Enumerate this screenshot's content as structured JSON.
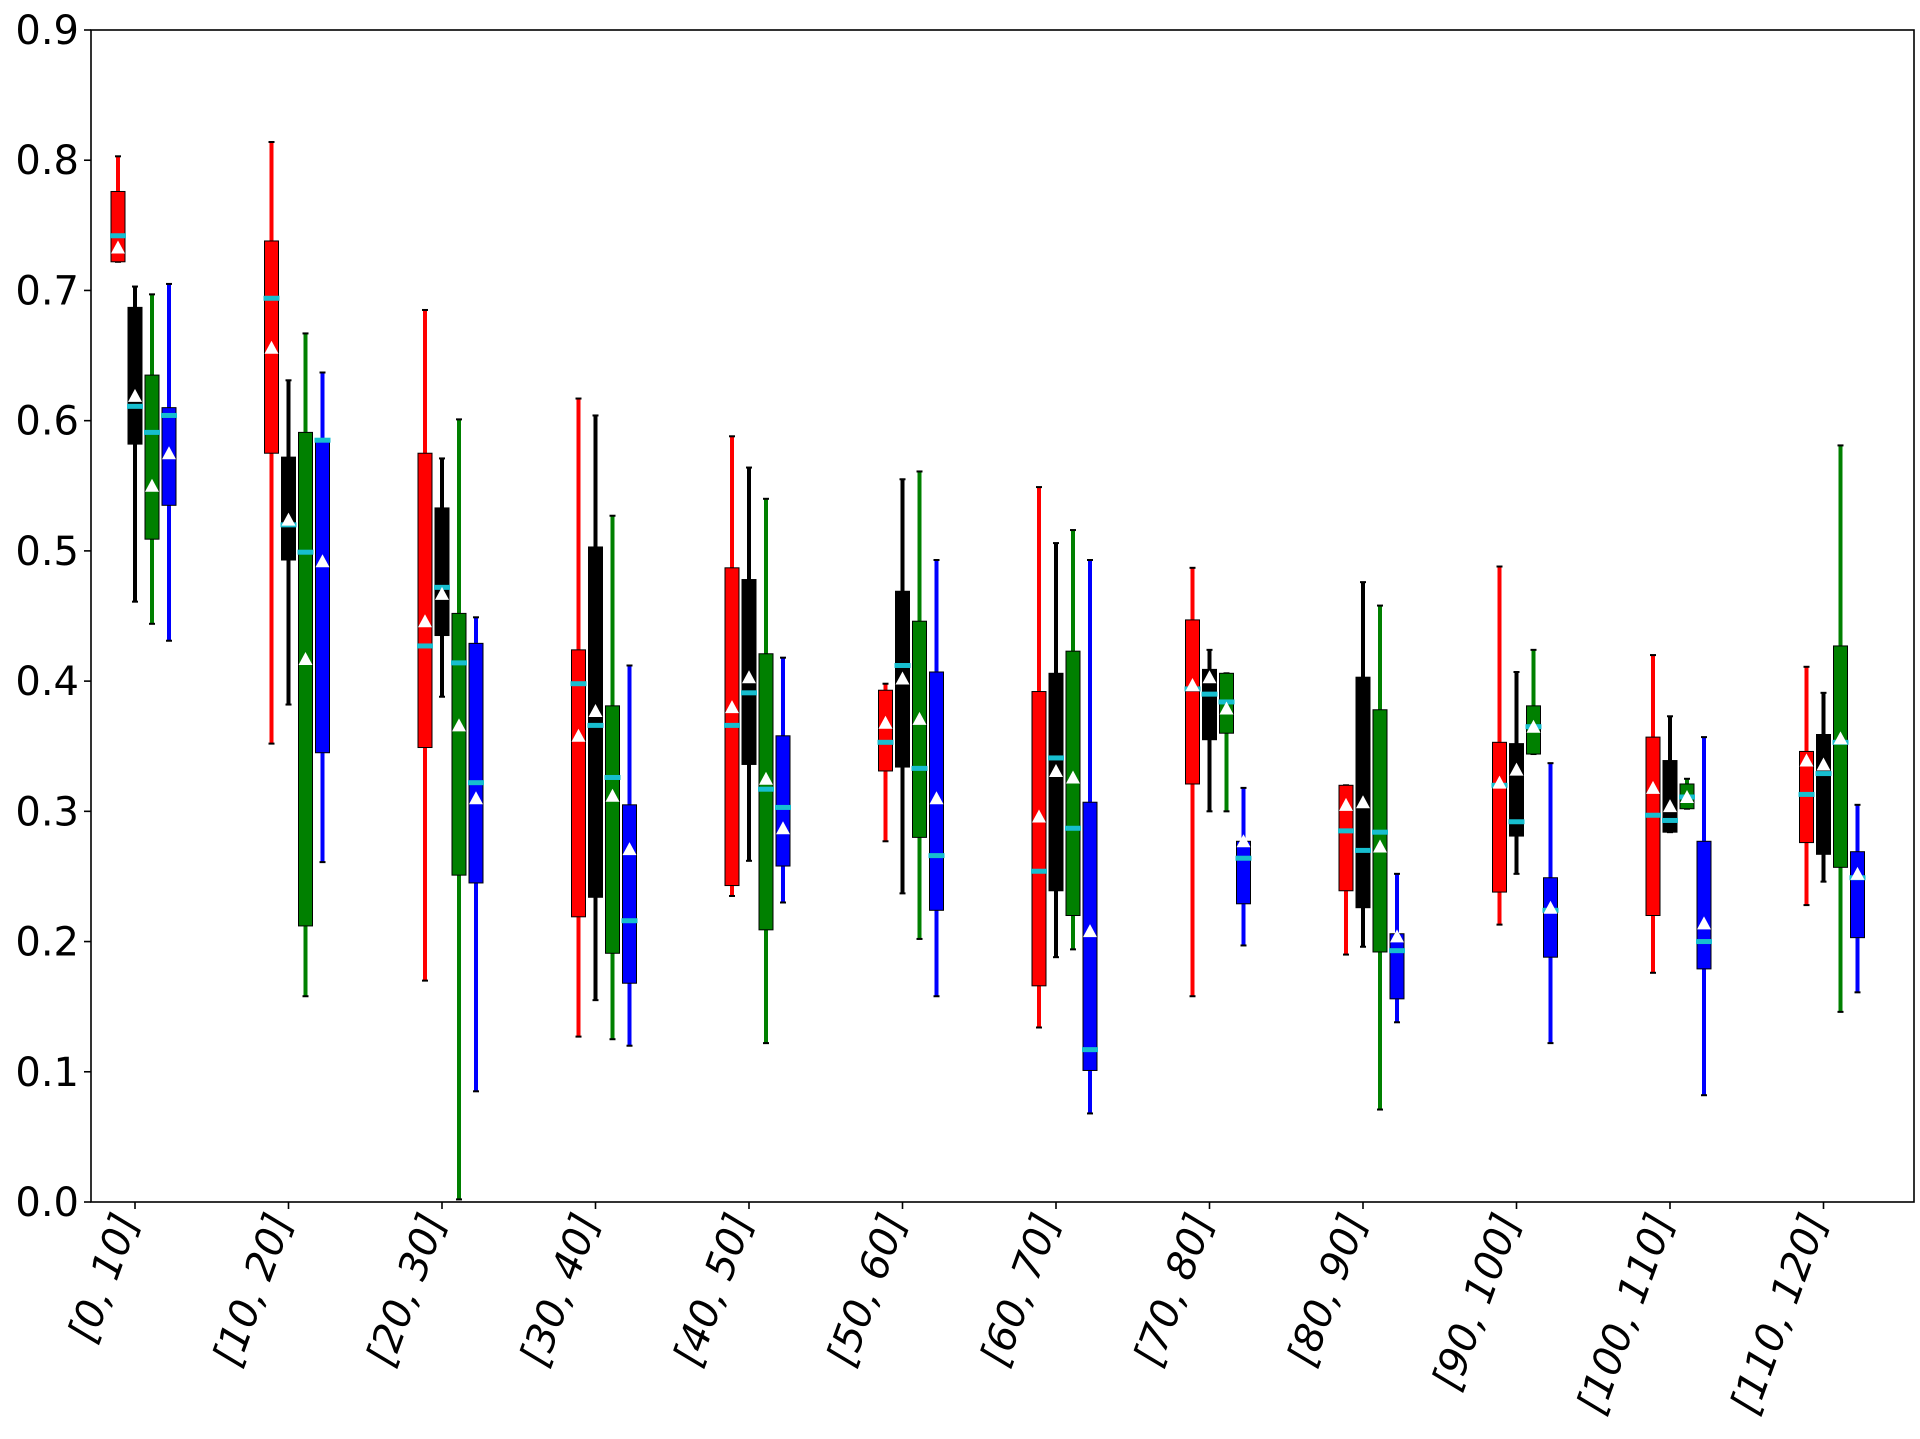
{
  "chart_data": {
    "type": "box",
    "title": "",
    "xlabel": "",
    "ylabel": "",
    "ylim": [
      0.0,
      0.9
    ],
    "yticks": [
      "0.0",
      "0.1",
      "0.2",
      "0.3",
      "0.4",
      "0.5",
      "0.6",
      "0.7",
      "0.8",
      "0.9"
    ],
    "grid": false,
    "legend": "none",
    "marker_colors": {
      "median": "#17becf",
      "mean": "#ffffff"
    },
    "categories": [
      "[0, 10]",
      "[10, 20]",
      "[20, 30]",
      "[30, 40]",
      "[40, 50]",
      "[50, 60]",
      "[60, 70]",
      "[70, 80]",
      "[80, 90]",
      "[90, 100]",
      "[100, 110]",
      "[110, 120]"
    ],
    "series": [
      {
        "color": "#ff0000",
        "boxes": [
          {
            "whislo": 0.722,
            "q1": 0.722,
            "med": 0.742,
            "q3": 0.776,
            "whishi": 0.803,
            "mean": 0.733
          },
          {
            "whislo": 0.352,
            "q1": 0.575,
            "med": 0.694,
            "q3": 0.738,
            "whishi": 0.814,
            "mean": 0.656
          },
          {
            "whislo": 0.17,
            "q1": 0.349,
            "med": 0.427,
            "q3": 0.575,
            "whishi": 0.685,
            "mean": 0.446
          },
          {
            "whislo": 0.127,
            "q1": 0.219,
            "med": 0.398,
            "q3": 0.424,
            "whishi": 0.617,
            "mean": 0.358
          },
          {
            "whislo": 0.235,
            "q1": 0.243,
            "med": 0.366,
            "q3": 0.487,
            "whishi": 0.588,
            "mean": 0.38
          },
          {
            "whislo": 0.277,
            "q1": 0.331,
            "med": 0.353,
            "q3": 0.393,
            "whishi": 0.398,
            "mean": 0.368
          },
          {
            "whislo": 0.134,
            "q1": 0.166,
            "med": 0.254,
            "q3": 0.392,
            "whishi": 0.549,
            "mean": 0.296
          },
          {
            "whislo": 0.158,
            "q1": 0.321,
            "med": 0.394,
            "q3": 0.447,
            "whishi": 0.487,
            "mean": 0.397
          },
          {
            "whislo": 0.19,
            "q1": 0.239,
            "med": 0.285,
            "q3": 0.32,
            "whishi": 0.32,
            "mean": 0.305
          },
          {
            "whislo": 0.213,
            "q1": 0.238,
            "med": 0.32,
            "q3": 0.353,
            "whishi": 0.488,
            "mean": 0.322
          },
          {
            "whislo": 0.176,
            "q1": 0.22,
            "med": 0.297,
            "q3": 0.357,
            "whishi": 0.42,
            "mean": 0.318
          },
          {
            "whislo": 0.228,
            "q1": 0.276,
            "med": 0.313,
            "q3": 0.346,
            "whishi": 0.411,
            "mean": 0.339
          }
        ]
      },
      {
        "color": "#000000",
        "boxes": [
          {
            "whislo": 0.461,
            "q1": 0.582,
            "med": 0.611,
            "q3": 0.687,
            "whishi": 0.703,
            "mean": 0.619
          },
          {
            "whislo": 0.382,
            "q1": 0.493,
            "med": 0.52,
            "q3": 0.572,
            "whishi": 0.631,
            "mean": 0.524
          },
          {
            "whislo": 0.388,
            "q1": 0.435,
            "med": 0.472,
            "q3": 0.533,
            "whishi": 0.571,
            "mean": 0.467
          },
          {
            "whislo": 0.155,
            "q1": 0.234,
            "med": 0.366,
            "q3": 0.503,
            "whishi": 0.604,
            "mean": 0.377
          },
          {
            "whislo": 0.262,
            "q1": 0.336,
            "med": 0.391,
            "q3": 0.478,
            "whishi": 0.564,
            "mean": 0.403
          },
          {
            "whislo": 0.237,
            "q1": 0.334,
            "med": 0.412,
            "q3": 0.469,
            "whishi": 0.555,
            "mean": 0.402
          },
          {
            "whislo": 0.188,
            "q1": 0.239,
            "med": 0.341,
            "q3": 0.406,
            "whishi": 0.506,
            "mean": 0.331
          },
          {
            "whislo": 0.3,
            "q1": 0.355,
            "med": 0.39,
            "q3": 0.409,
            "whishi": 0.424,
            "mean": 0.403
          },
          {
            "whislo": 0.196,
            "q1": 0.226,
            "med": 0.27,
            "q3": 0.403,
            "whishi": 0.476,
            "mean": 0.307
          },
          {
            "whislo": 0.252,
            "q1": 0.281,
            "med": 0.292,
            "q3": 0.352,
            "whishi": 0.407,
            "mean": 0.332
          },
          {
            "whislo": 0.284,
            "q1": 0.284,
            "med": 0.293,
            "q3": 0.339,
            "whishi": 0.373,
            "mean": 0.304
          },
          {
            "whislo": 0.246,
            "q1": 0.267,
            "med": 0.329,
            "q3": 0.359,
            "whishi": 0.391,
            "mean": 0.336
          }
        ]
      },
      {
        "color": "#008000",
        "boxes": [
          {
            "whislo": 0.444,
            "q1": 0.509,
            "med": 0.591,
            "q3": 0.635,
            "whishi": 0.697,
            "mean": 0.55
          },
          {
            "whislo": 0.158,
            "q1": 0.212,
            "med": 0.499,
            "q3": 0.591,
            "whishi": 0.667,
            "mean": 0.417
          },
          {
            "whislo": 0.002,
            "q1": 0.251,
            "med": 0.414,
            "q3": 0.452,
            "whishi": 0.601,
            "mean": 0.366
          },
          {
            "whislo": 0.125,
            "q1": 0.191,
            "med": 0.326,
            "q3": 0.381,
            "whishi": 0.527,
            "mean": 0.312
          },
          {
            "whislo": 0.122,
            "q1": 0.209,
            "med": 0.317,
            "q3": 0.421,
            "whishi": 0.54,
            "mean": 0.325
          },
          {
            "whislo": 0.202,
            "q1": 0.28,
            "med": 0.333,
            "q3": 0.446,
            "whishi": 0.561,
            "mean": 0.371
          },
          {
            "whislo": 0.194,
            "q1": 0.22,
            "med": 0.287,
            "q3": 0.423,
            "whishi": 0.516,
            "mean": 0.326
          },
          {
            "whislo": 0.3,
            "q1": 0.36,
            "med": 0.384,
            "q3": 0.406,
            "whishi": 0.406,
            "mean": 0.379
          },
          {
            "whislo": 0.071,
            "q1": 0.192,
            "med": 0.284,
            "q3": 0.378,
            "whishi": 0.458,
            "mean": 0.273
          },
          {
            "whislo": 0.344,
            "q1": 0.344,
            "med": 0.365,
            "q3": 0.381,
            "whishi": 0.424,
            "mean": 0.365
          },
          {
            "whislo": 0.302,
            "q1": 0.302,
            "med": 0.311,
            "q3": 0.321,
            "whishi": 0.325,
            "mean": 0.311
          },
          {
            "whislo": 0.146,
            "q1": 0.257,
            "med": 0.353,
            "q3": 0.427,
            "whishi": 0.581,
            "mean": 0.356
          }
        ]
      },
      {
        "color": "#0000ff",
        "boxes": [
          {
            "whislo": 0.431,
            "q1": 0.535,
            "med": 0.604,
            "q3": 0.61,
            "whishi": 0.705,
            "mean": 0.575
          },
          {
            "whislo": 0.261,
            "q1": 0.345,
            "med": 0.585,
            "q3": 0.585,
            "whishi": 0.637,
            "mean": 0.492
          },
          {
            "whislo": 0.085,
            "q1": 0.245,
            "med": 0.322,
            "q3": 0.429,
            "whishi": 0.449,
            "mean": 0.31
          },
          {
            "whislo": 0.12,
            "q1": 0.168,
            "med": 0.216,
            "q3": 0.305,
            "whishi": 0.412,
            "mean": 0.271
          },
          {
            "whislo": 0.23,
            "q1": 0.258,
            "med": 0.303,
            "q3": 0.358,
            "whishi": 0.418,
            "mean": 0.287
          },
          {
            "whislo": 0.158,
            "q1": 0.224,
            "med": 0.266,
            "q3": 0.407,
            "whishi": 0.493,
            "mean": 0.31
          },
          {
            "whislo": 0.068,
            "q1": 0.101,
            "med": 0.117,
            "q3": 0.307,
            "whishi": 0.493,
            "mean": 0.208
          },
          {
            "whislo": 0.197,
            "q1": 0.229,
            "med": 0.264,
            "q3": 0.277,
            "whishi": 0.318,
            "mean": 0.277
          },
          {
            "whislo": 0.138,
            "q1": 0.156,
            "med": 0.193,
            "q3": 0.206,
            "whishi": 0.252,
            "mean": 0.204
          },
          {
            "whislo": 0.122,
            "q1": 0.188,
            "med": 0.224,
            "q3": 0.249,
            "whishi": 0.337,
            "mean": 0.226
          },
          {
            "whislo": 0.082,
            "q1": 0.179,
            "med": 0.2,
            "q3": 0.277,
            "whishi": 0.357,
            "mean": 0.214
          },
          {
            "whislo": 0.161,
            "q1": 0.203,
            "med": 0.249,
            "q3": 0.269,
            "whishi": 0.305,
            "mean": 0.252
          }
        ]
      }
    ]
  }
}
